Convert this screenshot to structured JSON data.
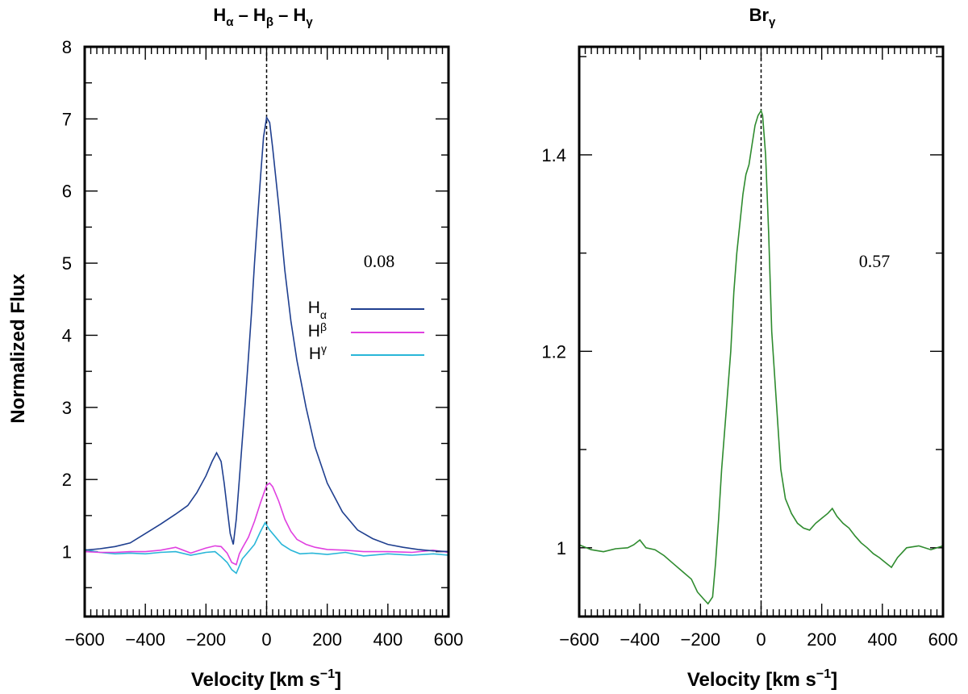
{
  "chart_data": [
    {
      "type": "line",
      "title_parts": {
        "a": "H",
        "a_sub": "α",
        "sep1": " – ",
        "b": "H",
        "b_sub": "β",
        "sep2": " – ",
        "c": "H",
        "c_sub": "γ"
      },
      "xlabel": {
        "main": "Velocity [km s",
        "sup": "−1",
        "close": "]"
      },
      "ylabel": "Normalized Flux",
      "xlim": [
        -600,
        600
      ],
      "ylim": [
        0.1,
        8
      ],
      "xticks": [
        -600,
        -400,
        -200,
        0,
        200,
        400,
        600
      ],
      "xtick_labels": [
        "−600",
        "−400",
        "−200",
        "0",
        "200",
        "400",
        "600"
      ],
      "yticks": [
        1,
        2,
        3,
        4,
        5,
        6,
        7,
        8
      ],
      "ytick_labels": [
        "1",
        "2",
        "3",
        "4",
        "5",
        "6",
        "7",
        "8"
      ],
      "annotation": "0.08",
      "legend_position": "right",
      "series": [
        {
          "name": "Hα",
          "label_main": "H",
          "label_sub": "α",
          "color": "#1f3f8f",
          "x": [
            -600,
            -550,
            -500,
            -450,
            -400,
            -350,
            -300,
            -260,
            -230,
            -200,
            -180,
            -165,
            -150,
            -140,
            -130,
            -120,
            -110,
            -100,
            -90,
            -80,
            -70,
            -60,
            -50,
            -40,
            -30,
            -20,
            -10,
            0,
            10,
            20,
            40,
            60,
            80,
            100,
            130,
            160,
            200,
            250,
            300,
            350,
            400,
            450,
            500,
            550,
            600
          ],
          "y": [
            1.02,
            1.04,
            1.07,
            1.12,
            1.25,
            1.38,
            1.52,
            1.64,
            1.82,
            2.05,
            2.25,
            2.37,
            2.25,
            1.95,
            1.6,
            1.25,
            1.1,
            1.45,
            2.0,
            2.55,
            3.1,
            3.7,
            4.3,
            5.0,
            5.6,
            6.2,
            6.75,
            7.02,
            6.95,
            6.6,
            5.8,
            4.9,
            4.2,
            3.65,
            3.0,
            2.45,
            1.95,
            1.55,
            1.3,
            1.18,
            1.1,
            1.06,
            1.03,
            1.01,
            1.0
          ]
        },
        {
          "name": "Hβ",
          "label_main": "H",
          "label_sub": "β",
          "color": "#e040e0",
          "x": [
            -600,
            -550,
            -500,
            -450,
            -400,
            -350,
            -300,
            -250,
            -200,
            -170,
            -150,
            -130,
            -115,
            -100,
            -90,
            -80,
            -60,
            -40,
            -20,
            0,
            10,
            20,
            40,
            60,
            80,
            100,
            130,
            160,
            200,
            260,
            320,
            400,
            480,
            550,
            600
          ],
          "y": [
            1.0,
            0.99,
            0.99,
            1.0,
            1.0,
            1.02,
            1.06,
            0.98,
            1.05,
            1.08,
            1.07,
            0.98,
            0.85,
            0.82,
            0.97,
            1.05,
            1.2,
            1.42,
            1.68,
            1.92,
            1.95,
            1.9,
            1.7,
            1.45,
            1.28,
            1.17,
            1.1,
            1.06,
            1.03,
            1.02,
            1.0,
            1.0,
            0.99,
            1.02,
            0.99
          ]
        },
        {
          "name": "Hγ",
          "label_main": "H",
          "label_sub": "γ",
          "color": "#29b6d8",
          "x": [
            -600,
            -550,
            -500,
            -450,
            -400,
            -350,
            -300,
            -250,
            -200,
            -170,
            -150,
            -130,
            -115,
            -100,
            -90,
            -80,
            -60,
            -40,
            -20,
            -5,
            10,
            30,
            50,
            80,
            110,
            150,
            200,
            260,
            320,
            400,
            480,
            550,
            600
          ],
          "y": [
            1.03,
            0.99,
            0.97,
            0.98,
            0.97,
            0.99,
            1.0,
            0.95,
            0.99,
            1.0,
            0.93,
            0.85,
            0.75,
            0.7,
            0.8,
            0.9,
            1.0,
            1.1,
            1.28,
            1.4,
            1.3,
            1.2,
            1.1,
            1.02,
            0.97,
            0.98,
            0.96,
            0.99,
            0.94,
            0.97,
            0.95,
            0.97,
            0.95
          ]
        }
      ]
    },
    {
      "type": "line",
      "title_parts": {
        "main": "Br",
        "sub": "γ"
      },
      "xlabel": {
        "main": "Velocity [km s",
        "sup": "−1",
        "close": "]"
      },
      "xlim": [
        -600,
        600
      ],
      "ylim": [
        0.93,
        1.51
      ],
      "xticks": [
        -600,
        -400,
        -200,
        0,
        200,
        400,
        600
      ],
      "xtick_labels": [
        "−600",
        "−400",
        "−200",
        "0",
        "200",
        "400",
        "600"
      ],
      "yticks": [
        1.0,
        1.2,
        1.4
      ],
      "ytick_labels": [
        "1",
        "1.2",
        "1.4"
      ],
      "annotation": "0.57",
      "series": [
        {
          "name": "Brγ",
          "color": "#2e8b2e",
          "x": [
            -600,
            -560,
            -520,
            -480,
            -440,
            -420,
            -400,
            -380,
            -350,
            -320,
            -290,
            -260,
            -230,
            -210,
            -190,
            -175,
            -160,
            -150,
            -140,
            -130,
            -115,
            -100,
            -90,
            -80,
            -70,
            -60,
            -50,
            -40,
            -30,
            -20,
            -10,
            0,
            5,
            15,
            25,
            35,
            50,
            65,
            80,
            100,
            120,
            140,
            160,
            180,
            200,
            220,
            235,
            250,
            270,
            290,
            310,
            330,
            350,
            370,
            390,
            410,
            430,
            450,
            480,
            520,
            560,
            600
          ],
          "y": [
            1.003,
            0.998,
            0.996,
            0.999,
            1.0,
            1.003,
            1.008,
            1.0,
            0.998,
            0.992,
            0.984,
            0.976,
            0.968,
            0.955,
            0.948,
            0.943,
            0.95,
            0.985,
            1.03,
            1.08,
            1.14,
            1.2,
            1.26,
            1.3,
            1.33,
            1.36,
            1.38,
            1.39,
            1.41,
            1.43,
            1.44,
            1.445,
            1.44,
            1.4,
            1.32,
            1.22,
            1.15,
            1.08,
            1.05,
            1.035,
            1.025,
            1.02,
            1.018,
            1.025,
            1.03,
            1.035,
            1.04,
            1.032,
            1.025,
            1.02,
            1.012,
            1.005,
            1.0,
            0.994,
            0.99,
            0.985,
            0.98,
            0.99,
            1.0,
            1.002,
            0.998,
            1.002
          ]
        }
      ]
    }
  ]
}
